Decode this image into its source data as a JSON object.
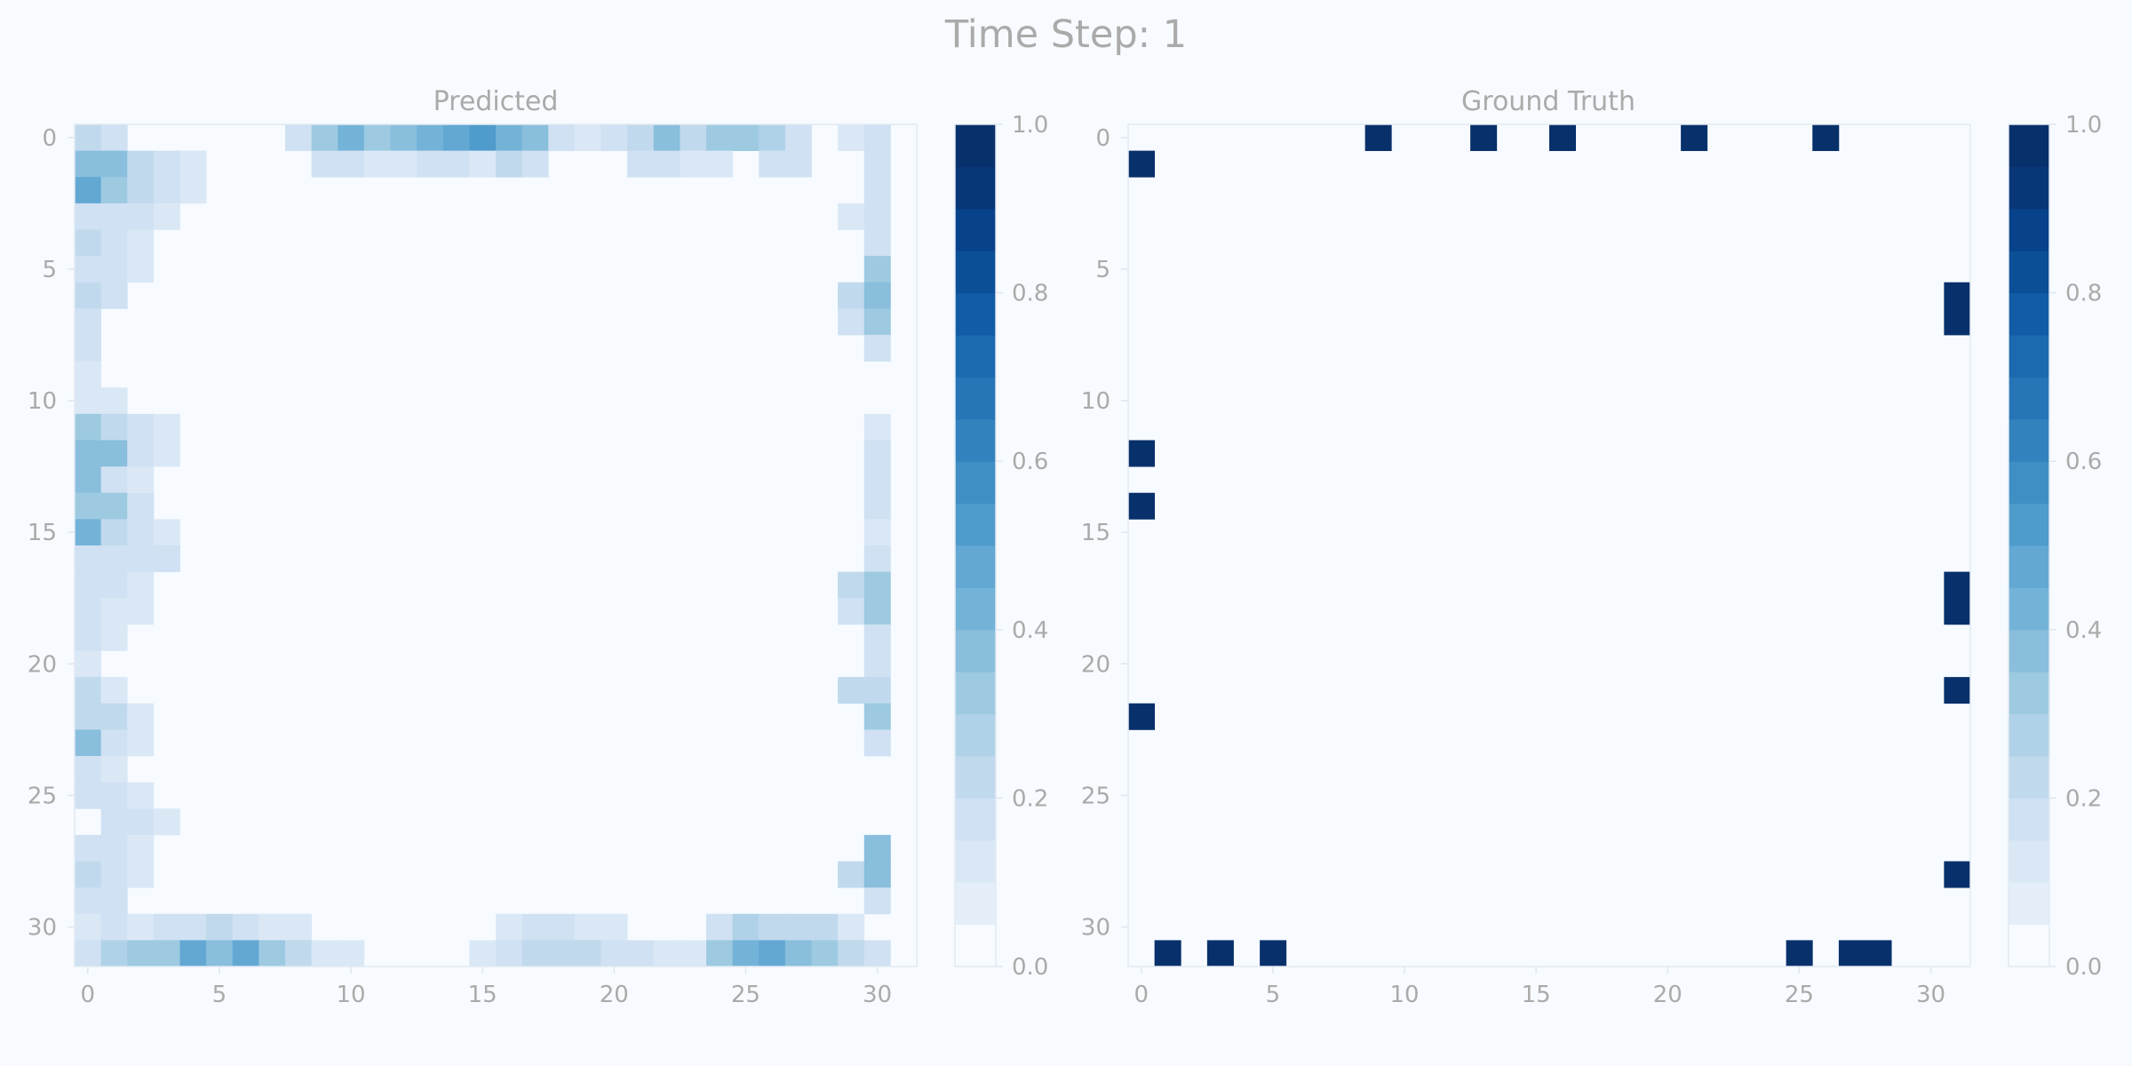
{
  "figure": {
    "title": "Time Step: 1",
    "background": "#f7fbff"
  },
  "colormap": {
    "name": "Blues",
    "levels": [
      0.0,
      0.05,
      0.1,
      0.15,
      0.2,
      0.25,
      0.3,
      0.35,
      0.4,
      0.45,
      0.5,
      0.55,
      0.6,
      0.65,
      0.7,
      0.75,
      0.8,
      0.85,
      0.9,
      0.95,
      1.0
    ],
    "colors": [
      "#f7fbff",
      "#e3eef9",
      "#dae8f6",
      "#cfe1f2",
      "#c1d9ed",
      "#b0d2e8",
      "#9dcae1",
      "#89bedc",
      "#74b3d8",
      "#62a8d3",
      "#4f9bcb",
      "#3f8fc5",
      "#3282be",
      "#2575b7",
      "#1b69af",
      "#115ca5",
      "#0b4f97",
      "#08428a",
      "#083778",
      "#08306b"
    ],
    "ticks": [
      "0.0",
      "0.2",
      "0.4",
      "0.6",
      "0.8",
      "1.0"
    ]
  },
  "chart_data": [
    {
      "type": "heatmap",
      "title": "Predicted",
      "rows": 32,
      "cols": 32,
      "x_ticks": [
        "0",
        "5",
        "10",
        "15",
        "20",
        "25",
        "30"
      ],
      "y_ticks": [
        "0",
        "5",
        "10",
        "15",
        "20",
        "25",
        "30"
      ],
      "vmin": 0,
      "vmax": 1,
      "cells": [
        [
          0,
          0,
          0.2
        ],
        [
          0,
          1,
          0.15
        ],
        [
          0,
          8,
          0.15
        ],
        [
          0,
          9,
          0.3
        ],
        [
          0,
          10,
          0.4
        ],
        [
          0,
          11,
          0.3
        ],
        [
          0,
          12,
          0.35
        ],
        [
          0,
          13,
          0.4
        ],
        [
          0,
          14,
          0.45
        ],
        [
          0,
          15,
          0.5
        ],
        [
          0,
          16,
          0.4
        ],
        [
          0,
          17,
          0.35
        ],
        [
          0,
          18,
          0.15
        ],
        [
          0,
          19,
          0.1
        ],
        [
          0,
          20,
          0.15
        ],
        [
          0,
          21,
          0.2
        ],
        [
          0,
          22,
          0.35
        ],
        [
          0,
          23,
          0.2
        ],
        [
          0,
          24,
          0.3
        ],
        [
          0,
          25,
          0.3
        ],
        [
          0,
          26,
          0.25
        ],
        [
          0,
          27,
          0.15
        ],
        [
          0,
          29,
          0.1
        ],
        [
          0,
          30,
          0.15
        ],
        [
          1,
          0,
          0.35
        ],
        [
          1,
          1,
          0.35
        ],
        [
          1,
          2,
          0.2
        ],
        [
          1,
          3,
          0.15
        ],
        [
          1,
          4,
          0.1
        ],
        [
          1,
          9,
          0.15
        ],
        [
          1,
          10,
          0.15
        ],
        [
          1,
          11,
          0.1
        ],
        [
          1,
          12,
          0.1
        ],
        [
          1,
          13,
          0.15
        ],
        [
          1,
          14,
          0.15
        ],
        [
          1,
          15,
          0.1
        ],
        [
          1,
          16,
          0.2
        ],
        [
          1,
          17,
          0.15
        ],
        [
          1,
          21,
          0.15
        ],
        [
          1,
          22,
          0.15
        ],
        [
          1,
          23,
          0.1
        ],
        [
          1,
          24,
          0.1
        ],
        [
          1,
          26,
          0.15
        ],
        [
          1,
          27,
          0.15
        ],
        [
          1,
          30,
          0.15
        ],
        [
          2,
          0,
          0.45
        ],
        [
          2,
          1,
          0.3
        ],
        [
          2,
          2,
          0.2
        ],
        [
          2,
          3,
          0.15
        ],
        [
          2,
          4,
          0.1
        ],
        [
          2,
          30,
          0.15
        ],
        [
          3,
          0,
          0.15
        ],
        [
          3,
          1,
          0.15
        ],
        [
          3,
          2,
          0.15
        ],
        [
          3,
          3,
          0.1
        ],
        [
          3,
          29,
          0.1
        ],
        [
          3,
          30,
          0.15
        ],
        [
          4,
          0,
          0.2
        ],
        [
          4,
          1,
          0.15
        ],
        [
          4,
          2,
          0.1
        ],
        [
          4,
          30,
          0.15
        ],
        [
          5,
          0,
          0.15
        ],
        [
          5,
          1,
          0.15
        ],
        [
          5,
          2,
          0.1
        ],
        [
          5,
          30,
          0.3
        ],
        [
          6,
          0,
          0.2
        ],
        [
          6,
          1,
          0.15
        ],
        [
          6,
          29,
          0.2
        ],
        [
          6,
          30,
          0.35
        ],
        [
          7,
          0,
          0.15
        ],
        [
          7,
          29,
          0.15
        ],
        [
          7,
          30,
          0.3
        ],
        [
          8,
          0,
          0.15
        ],
        [
          8,
          30,
          0.15
        ],
        [
          9,
          0,
          0.1
        ],
        [
          10,
          0,
          0.1
        ],
        [
          10,
          1,
          0.1
        ],
        [
          11,
          0,
          0.3
        ],
        [
          11,
          1,
          0.2
        ],
        [
          11,
          2,
          0.15
        ],
        [
          11,
          3,
          0.1
        ],
        [
          11,
          30,
          0.1
        ],
        [
          12,
          0,
          0.35
        ],
        [
          12,
          1,
          0.35
        ],
        [
          12,
          2,
          0.15
        ],
        [
          12,
          3,
          0.1
        ],
        [
          12,
          30,
          0.15
        ],
        [
          13,
          0,
          0.35
        ],
        [
          13,
          1,
          0.15
        ],
        [
          13,
          2,
          0.1
        ],
        [
          13,
          30,
          0.15
        ],
        [
          14,
          0,
          0.3
        ],
        [
          14,
          1,
          0.3
        ],
        [
          14,
          2,
          0.15
        ],
        [
          14,
          30,
          0.15
        ],
        [
          15,
          0,
          0.4
        ],
        [
          15,
          1,
          0.2
        ],
        [
          15,
          2,
          0.15
        ],
        [
          15,
          3,
          0.1
        ],
        [
          15,
          30,
          0.1
        ],
        [
          16,
          0,
          0.15
        ],
        [
          16,
          1,
          0.15
        ],
        [
          16,
          2,
          0.15
        ],
        [
          16,
          3,
          0.15
        ],
        [
          16,
          30,
          0.15
        ],
        [
          17,
          0,
          0.15
        ],
        [
          17,
          1,
          0.15
        ],
        [
          17,
          2,
          0.1
        ],
        [
          17,
          29,
          0.2
        ],
        [
          17,
          30,
          0.3
        ],
        [
          18,
          0,
          0.15
        ],
        [
          18,
          1,
          0.1
        ],
        [
          18,
          2,
          0.1
        ],
        [
          18,
          29,
          0.15
        ],
        [
          18,
          30,
          0.3
        ],
        [
          19,
          0,
          0.15
        ],
        [
          19,
          1,
          0.1
        ],
        [
          19,
          30,
          0.15
        ],
        [
          20,
          0,
          0.1
        ],
        [
          20,
          30,
          0.15
        ],
        [
          21,
          0,
          0.2
        ],
        [
          21,
          1,
          0.1
        ],
        [
          21,
          29,
          0.2
        ],
        [
          21,
          30,
          0.2
        ],
        [
          22,
          0,
          0.2
        ],
        [
          22,
          1,
          0.2
        ],
        [
          22,
          2,
          0.1
        ],
        [
          22,
          30,
          0.3
        ],
        [
          23,
          0,
          0.35
        ],
        [
          23,
          1,
          0.15
        ],
        [
          23,
          2,
          0.1
        ],
        [
          23,
          30,
          0.15
        ],
        [
          24,
          0,
          0.15
        ],
        [
          24,
          1,
          0.1
        ],
        [
          25,
          0,
          0.15
        ],
        [
          25,
          1,
          0.15
        ],
        [
          25,
          2,
          0.1
        ],
        [
          26,
          1,
          0.15
        ],
        [
          26,
          2,
          0.15
        ],
        [
          26,
          3,
          0.1
        ],
        [
          27,
          0,
          0.15
        ],
        [
          27,
          1,
          0.15
        ],
        [
          27,
          2,
          0.1
        ],
        [
          27,
          30,
          0.35
        ],
        [
          28,
          0,
          0.2
        ],
        [
          28,
          1,
          0.15
        ],
        [
          28,
          2,
          0.1
        ],
        [
          28,
          29,
          0.2
        ],
        [
          28,
          30,
          0.35
        ],
        [
          29,
          0,
          0.15
        ],
        [
          29,
          1,
          0.15
        ],
        [
          29,
          30,
          0.15
        ],
        [
          30,
          0,
          0.1
        ],
        [
          30,
          1,
          0.15
        ],
        [
          30,
          2,
          0.1
        ],
        [
          30,
          3,
          0.15
        ],
        [
          30,
          4,
          0.15
        ],
        [
          30,
          5,
          0.2
        ],
        [
          30,
          6,
          0.15
        ],
        [
          30,
          7,
          0.1
        ],
        [
          30,
          8,
          0.1
        ],
        [
          30,
          16,
          0.1
        ],
        [
          30,
          17,
          0.15
        ],
        [
          30,
          18,
          0.15
        ],
        [
          30,
          19,
          0.1
        ],
        [
          30,
          20,
          0.1
        ],
        [
          30,
          24,
          0.15
        ],
        [
          30,
          25,
          0.25
        ],
        [
          30,
          26,
          0.2
        ],
        [
          30,
          27,
          0.2
        ],
        [
          30,
          28,
          0.2
        ],
        [
          30,
          29,
          0.1
        ],
        [
          31,
          0,
          0.15
        ],
        [
          31,
          1,
          0.25
        ],
        [
          31,
          2,
          0.3
        ],
        [
          31,
          3,
          0.3
        ],
        [
          31,
          4,
          0.45
        ],
        [
          31,
          5,
          0.35
        ],
        [
          31,
          6,
          0.45
        ],
        [
          31,
          7,
          0.3
        ],
        [
          31,
          8,
          0.2
        ],
        [
          31,
          9,
          0.1
        ],
        [
          31,
          10,
          0.1
        ],
        [
          31,
          15,
          0.1
        ],
        [
          31,
          16,
          0.15
        ],
        [
          31,
          17,
          0.2
        ],
        [
          31,
          18,
          0.2
        ],
        [
          31,
          19,
          0.2
        ],
        [
          31,
          20,
          0.15
        ],
        [
          31,
          21,
          0.15
        ],
        [
          31,
          22,
          0.1
        ],
        [
          31,
          23,
          0.1
        ],
        [
          31,
          24,
          0.3
        ],
        [
          31,
          25,
          0.4
        ],
        [
          31,
          26,
          0.45
        ],
        [
          31,
          27,
          0.35
        ],
        [
          31,
          28,
          0.3
        ],
        [
          31,
          29,
          0.2
        ],
        [
          31,
          30,
          0.15
        ]
      ]
    },
    {
      "type": "heatmap",
      "title": "Ground Truth",
      "rows": 32,
      "cols": 32,
      "x_ticks": [
        "0",
        "5",
        "10",
        "15",
        "20",
        "25",
        "30"
      ],
      "y_ticks": [
        "0",
        "5",
        "10",
        "15",
        "20",
        "25",
        "30"
      ],
      "vmin": 0,
      "vmax": 1,
      "cells": [
        [
          0,
          9,
          1
        ],
        [
          0,
          13,
          1
        ],
        [
          0,
          16,
          1
        ],
        [
          0,
          21,
          1
        ],
        [
          0,
          26,
          1
        ],
        [
          1,
          0,
          1
        ],
        [
          6,
          31,
          1
        ],
        [
          7,
          31,
          1
        ],
        [
          12,
          0,
          1
        ],
        [
          14,
          0,
          1
        ],
        [
          17,
          31,
          1
        ],
        [
          18,
          31,
          1
        ],
        [
          21,
          31,
          1
        ],
        [
          22,
          0,
          1
        ],
        [
          28,
          31,
          1
        ],
        [
          31,
          1,
          1
        ],
        [
          31,
          3,
          1
        ],
        [
          31,
          5,
          1
        ],
        [
          31,
          25,
          1
        ],
        [
          31,
          27,
          1
        ],
        [
          31,
          28,
          1
        ]
      ]
    }
  ]
}
